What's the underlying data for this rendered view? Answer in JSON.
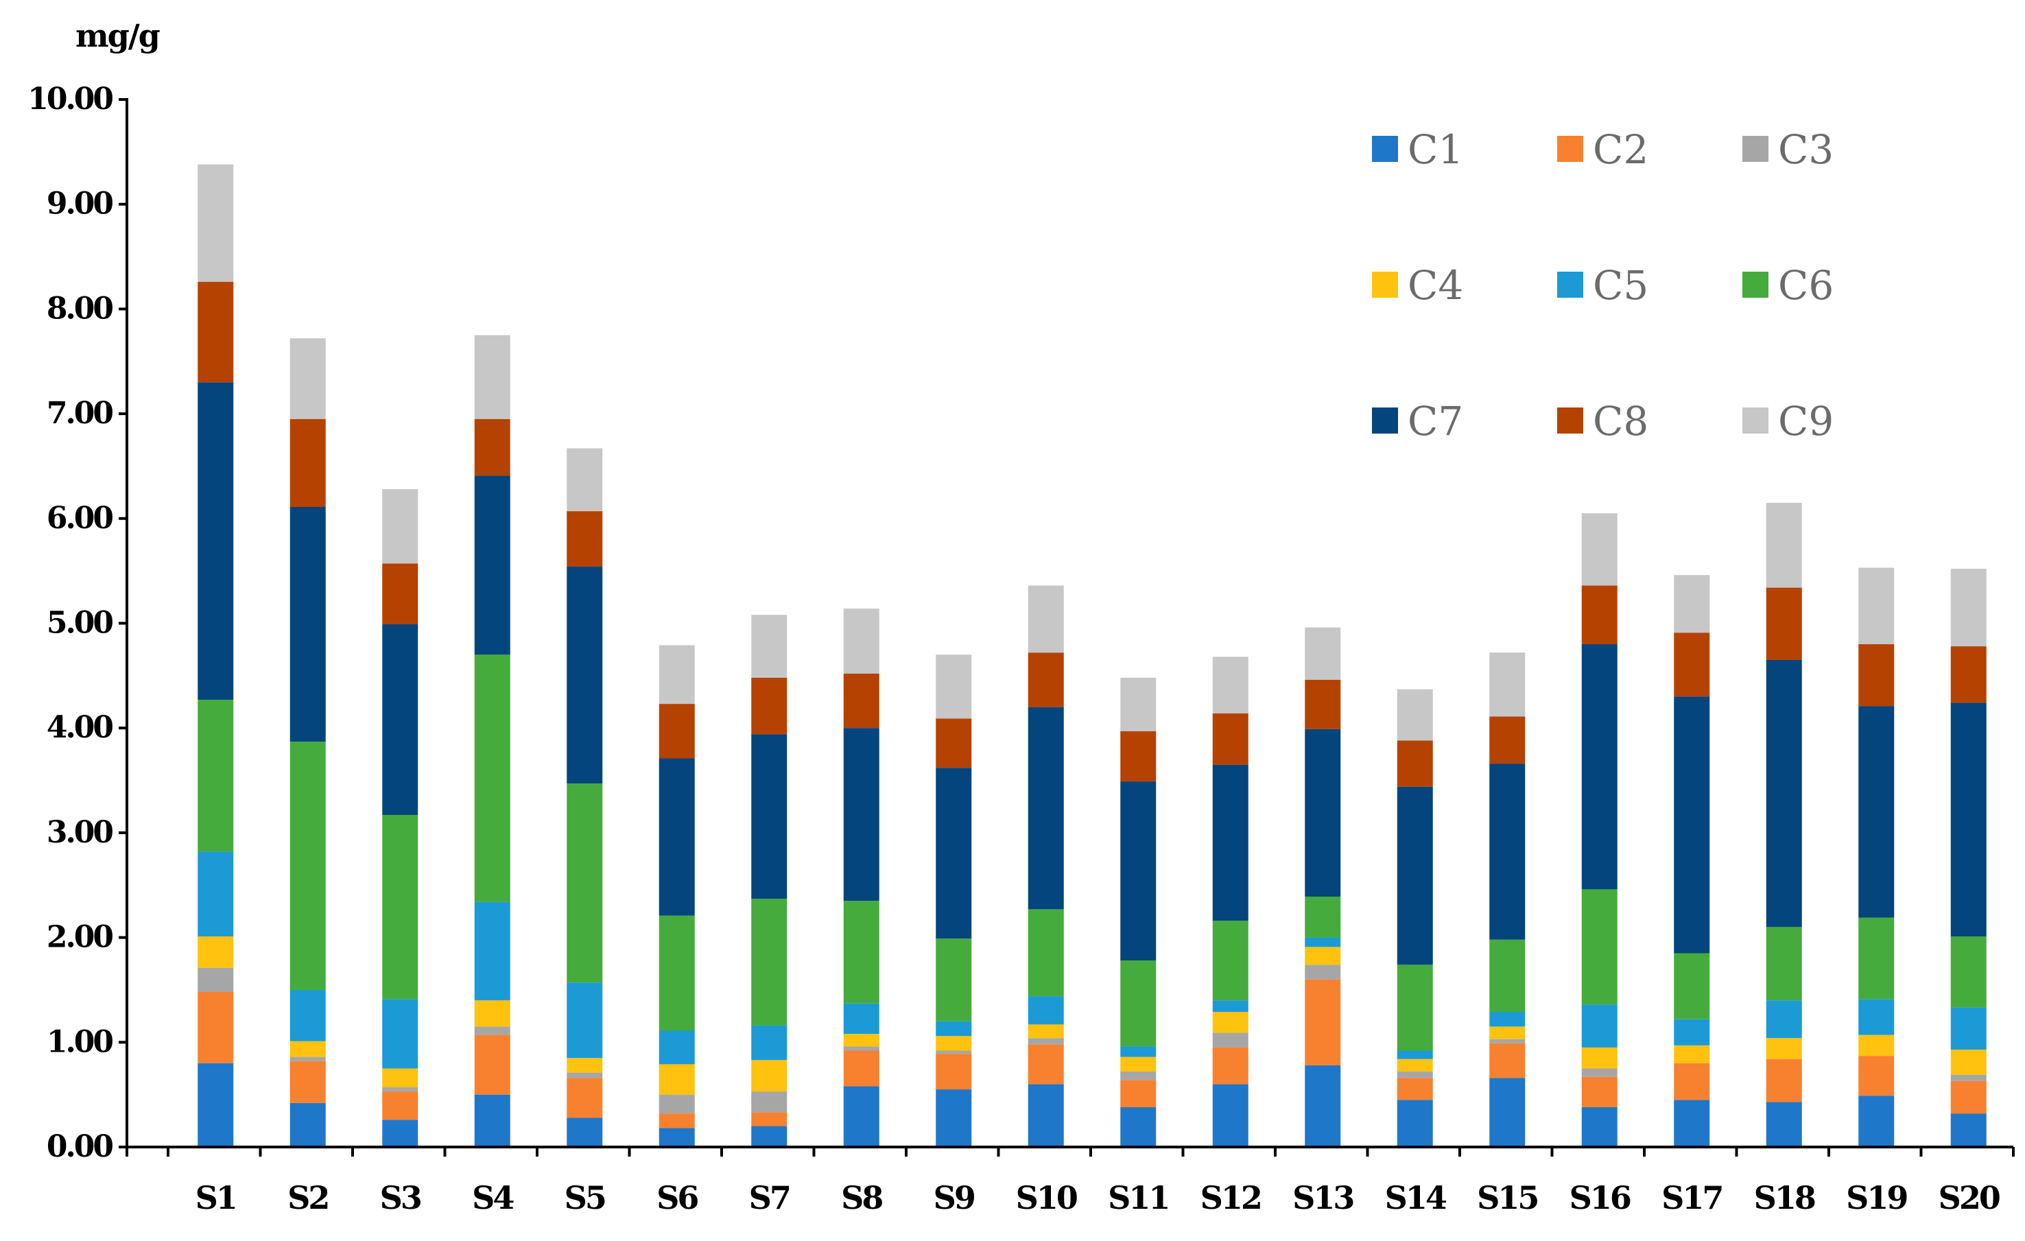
{
  "chart_data": {
    "type": "bar",
    "stacked": true,
    "ylabel": "mg/g",
    "xlabel": "",
    "ylim": [
      0,
      10
    ],
    "yticks": [
      "0.00",
      "1.00",
      "2.00",
      "3.00",
      "4.00",
      "5.00",
      "6.00",
      "7.00",
      "8.00",
      "9.00",
      "10.00"
    ],
    "grid": false,
    "legend_position": "top-right",
    "categories": [
      "S1",
      "S2",
      "S3",
      "S4",
      "S5",
      "S6",
      "S7",
      "S8",
      "S9",
      "S10",
      "S11",
      "S12",
      "S13",
      "S14",
      "S15",
      "S16",
      "S17",
      "S18",
      "S19",
      "S20"
    ],
    "series": [
      {
        "name": "C1",
        "color": "#1f77c9",
        "values": [
          0.8,
          0.42,
          0.26,
          0.5,
          0.28,
          0.18,
          0.2,
          0.58,
          0.55,
          0.6,
          0.38,
          0.6,
          0.78,
          0.45,
          0.66,
          0.38,
          0.45,
          0.43,
          0.49,
          0.32
        ]
      },
      {
        "name": "C2",
        "color": "#f7812e",
        "values": [
          0.68,
          0.4,
          0.27,
          0.57,
          0.38,
          0.14,
          0.13,
          0.34,
          0.34,
          0.38,
          0.26,
          0.35,
          0.82,
          0.21,
          0.33,
          0.29,
          0.35,
          0.41,
          0.38,
          0.31
        ]
      },
      {
        "name": "C3",
        "color": "#a6a6a6",
        "values": [
          0.23,
          0.04,
          0.04,
          0.08,
          0.05,
          0.18,
          0.2,
          0.04,
          0.03,
          0.06,
          0.08,
          0.14,
          0.14,
          0.06,
          0.04,
          0.08,
          0.0,
          0.0,
          0.0,
          0.06
        ]
      },
      {
        "name": "C4",
        "color": "#ffc20e",
        "values": [
          0.3,
          0.15,
          0.18,
          0.25,
          0.14,
          0.29,
          0.3,
          0.12,
          0.14,
          0.13,
          0.14,
          0.2,
          0.17,
          0.12,
          0.12,
          0.2,
          0.17,
          0.2,
          0.2,
          0.24
        ]
      },
      {
        "name": "C5",
        "color": "#1b9ad6",
        "values": [
          0.81,
          0.49,
          0.66,
          0.94,
          0.72,
          0.32,
          0.33,
          0.29,
          0.14,
          0.27,
          0.1,
          0.11,
          0.09,
          0.08,
          0.14,
          0.41,
          0.25,
          0.36,
          0.34,
          0.4
        ]
      },
      {
        "name": "C6",
        "color": "#45ab3c",
        "values": [
          1.45,
          2.37,
          1.76,
          2.36,
          1.9,
          1.1,
          1.21,
          0.98,
          0.79,
          0.83,
          0.82,
          0.76,
          0.39,
          0.82,
          0.69,
          1.1,
          0.63,
          0.7,
          0.78,
          0.68
        ]
      },
      {
        "name": "C7",
        "color": "#03457c",
        "values": [
          3.03,
          2.24,
          1.82,
          1.71,
          2.07,
          1.5,
          1.57,
          1.65,
          1.63,
          1.93,
          1.71,
          1.49,
          1.6,
          1.7,
          1.68,
          2.34,
          2.45,
          2.55,
          2.02,
          2.23
        ]
      },
      {
        "name": "C8",
        "color": "#b54200",
        "values": [
          0.96,
          0.84,
          0.58,
          0.54,
          0.53,
          0.52,
          0.54,
          0.52,
          0.47,
          0.52,
          0.48,
          0.49,
          0.47,
          0.44,
          0.45,
          0.56,
          0.61,
          0.69,
          0.59,
          0.54
        ]
      },
      {
        "name": "C9",
        "color": "#c7c7c7",
        "values": [
          1.12,
          0.77,
          0.71,
          0.8,
          0.6,
          0.56,
          0.6,
          0.62,
          0.61,
          0.64,
          0.51,
          0.54,
          0.5,
          0.49,
          0.61,
          0.69,
          0.55,
          0.81,
          0.73,
          0.74
        ]
      }
    ]
  }
}
